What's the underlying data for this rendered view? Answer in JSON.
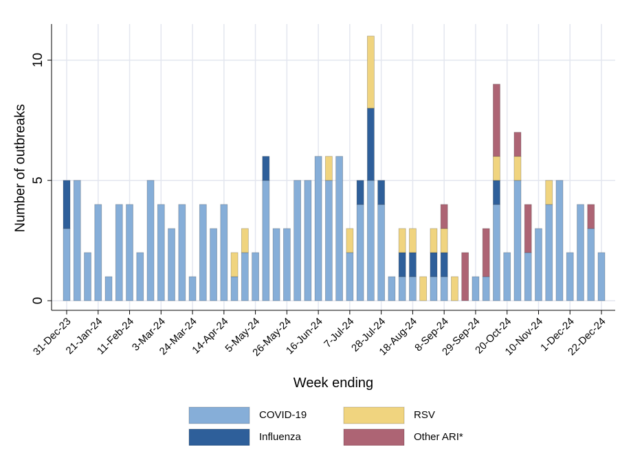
{
  "chart_data": {
    "type": "stacked_bar",
    "x_label": "Week ending",
    "y_label": "Number of outbreaks",
    "categories": [
      "31-Dec-23",
      null,
      null,
      "21-Jan-24",
      null,
      null,
      "11-Feb-24",
      null,
      null,
      "3-Mar-24",
      null,
      null,
      "24-Mar-24",
      null,
      null,
      "14-Apr-24",
      null,
      null,
      "5-May-24",
      null,
      null,
      "26-May-24",
      null,
      null,
      "16-Jun-24",
      null,
      null,
      "7-Jul-24",
      null,
      null,
      "28-Jul-24",
      null,
      null,
      "18-Aug-24",
      null,
      null,
      "8-Sep-24",
      null,
      null,
      "29-Sep-24",
      null,
      null,
      "20-Oct-24",
      null,
      null,
      "10-Nov-24",
      null,
      null,
      "1-Dec-24",
      null,
      null,
      "22-Dec-24"
    ],
    "series": [
      {
        "name": "COVID-19",
        "color": "#86aed8",
        "values": [
          3,
          5,
          2,
          4,
          1,
          4,
          4,
          2,
          5,
          4,
          3,
          4,
          1,
          4,
          3,
          4,
          1,
          2,
          2,
          5,
          3,
          3,
          5,
          5,
          6,
          5,
          6,
          2,
          4,
          5,
          4,
          1,
          1,
          1,
          0,
          1,
          1,
          0,
          0,
          1,
          1,
          4,
          2,
          5,
          2,
          3,
          4,
          5,
          2,
          4,
          3,
          2
        ]
      },
      {
        "name": "Influenza",
        "color": "#2e5f9a",
        "values": [
          2,
          0,
          0,
          0,
          0,
          0,
          0,
          0,
          0,
          0,
          0,
          0,
          0,
          0,
          0,
          0,
          0,
          0,
          0,
          1,
          0,
          0,
          0,
          0,
          0,
          0,
          0,
          0,
          1,
          3,
          1,
          0,
          1,
          1,
          0,
          1,
          1,
          0,
          0,
          0,
          0,
          1,
          0,
          0,
          0,
          0,
          0,
          0,
          0,
          0,
          0,
          0
        ]
      },
      {
        "name": "RSV",
        "color": "#f0d47f",
        "values": [
          0,
          0,
          0,
          0,
          0,
          0,
          0,
          0,
          0,
          0,
          0,
          0,
          0,
          0,
          0,
          0,
          1,
          1,
          0,
          0,
          0,
          0,
          0,
          0,
          0,
          1,
          0,
          1,
          0,
          3,
          0,
          0,
          1,
          1,
          1,
          1,
          1,
          1,
          0,
          0,
          0,
          1,
          0,
          1,
          0,
          0,
          1,
          0,
          0,
          0,
          0,
          0
        ]
      },
      {
        "name": "Other ARI*",
        "color": "#ad6474",
        "values": [
          0,
          0,
          0,
          0,
          0,
          0,
          0,
          0,
          0,
          0,
          0,
          0,
          0,
          0,
          0,
          0,
          0,
          0,
          0,
          0,
          0,
          0,
          0,
          0,
          0,
          0,
          0,
          0,
          0,
          0,
          0,
          0,
          0,
          0,
          0,
          0,
          1,
          0,
          2,
          0,
          2,
          3,
          0,
          1,
          2,
          0,
          0,
          0,
          0,
          0,
          1,
          0
        ]
      }
    ],
    "ylim": [
      -0.4,
      11.5
    ],
    "yticks": [
      0,
      5,
      10
    ],
    "grid": true
  }
}
